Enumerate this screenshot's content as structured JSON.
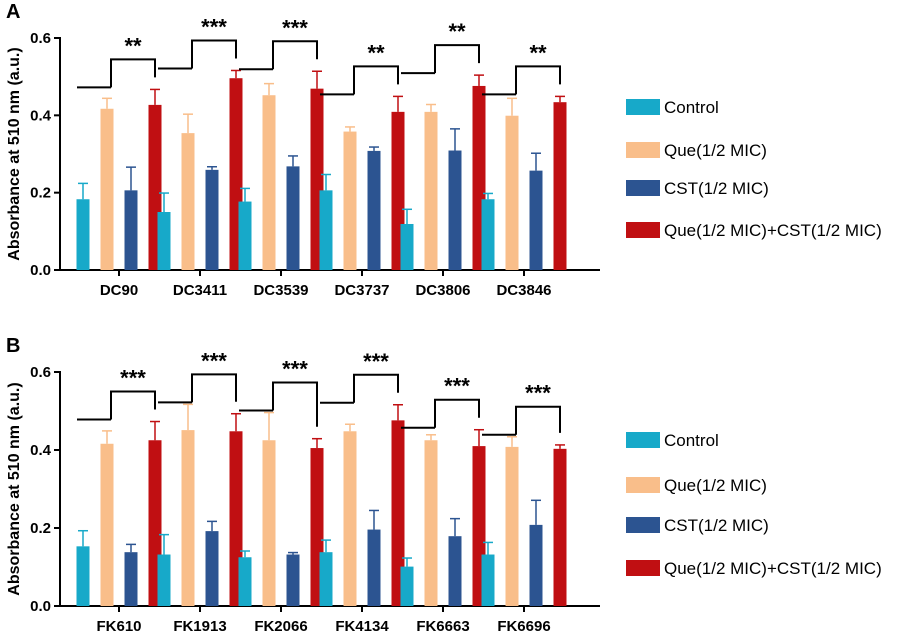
{
  "colors": {
    "Control": "#17a9c9",
    "Que(1/2 MIC)": "#f9be8a",
    "CST(1/2 MIC)": "#2c5491",
    "Que(1/2 MIC)+CST(1/2 MIC)": "#c00f12"
  },
  "chart_data": [
    {
      "type": "bar",
      "panel": "A",
      "categories": [
        "DC90",
        "DC3411",
        "DC3539",
        "DC3737",
        "DC3806",
        "DC3846"
      ],
      "series": [
        {
          "name": "Control",
          "values": [
            0.183,
            0.15,
            0.177,
            0.206,
            0.119,
            0.183
          ],
          "errors": [
            0.041,
            0.049,
            0.034,
            0.041,
            0.038,
            0.015
          ]
        },
        {
          "name": "Que(1/2 MIC)",
          "values": [
            0.417,
            0.354,
            0.452,
            0.358,
            0.409,
            0.399
          ],
          "errors": [
            0.027,
            0.049,
            0.03,
            0.012,
            0.019,
            0.045
          ]
        },
        {
          "name": "CST(1/2 MIC)",
          "values": [
            0.206,
            0.259,
            0.268,
            0.308,
            0.309,
            0.257
          ],
          "errors": [
            0.06,
            0.008,
            0.027,
            0.01,
            0.056,
            0.045
          ]
        },
        {
          "name": "Que(1/2 MIC)+CST(1/2 MIC)",
          "values": [
            0.427,
            0.496,
            0.469,
            0.409,
            0.476,
            0.434
          ],
          "errors": [
            0.04,
            0.02,
            0.045,
            0.04,
            0.028,
            0.015
          ]
        }
      ],
      "significance": [
        "**",
        "***",
        "***",
        "**",
        "**",
        "**"
      ],
      "title": "",
      "xlabel": "",
      "ylabel": "Absorbance at 510 nm (a.u.)",
      "ylim": [
        0,
        0.6
      ],
      "yticks": [
        "0.0",
        "0.2",
        "0.4",
        "0.6"
      ]
    },
    {
      "type": "bar",
      "panel": "B",
      "categories": [
        "FK610",
        "FK1913",
        "FK2066",
        "FK4134",
        "FK6663",
        "FK6696"
      ],
      "series": [
        {
          "name": "Control",
          "values": [
            0.153,
            0.132,
            0.125,
            0.138,
            0.101,
            0.132
          ],
          "errors": [
            0.04,
            0.051,
            0.016,
            0.031,
            0.022,
            0.031
          ]
        },
        {
          "name": "Que(1/2 MIC)",
          "values": [
            0.416,
            0.451,
            0.425,
            0.448,
            0.425,
            0.408
          ],
          "errors": [
            0.033,
            0.066,
            0.071,
            0.018,
            0.014,
            0.026
          ]
        },
        {
          "name": "CST(1/2 MIC)",
          "values": [
            0.138,
            0.192,
            0.132,
            0.196,
            0.179,
            0.208
          ],
          "errors": [
            0.02,
            0.025,
            0.005,
            0.049,
            0.045,
            0.063
          ]
        },
        {
          "name": "Que(1/2 MIC)+CST(1/2 MIC)",
          "values": [
            0.425,
            0.448,
            0.405,
            0.476,
            0.41,
            0.403
          ],
          "errors": [
            0.048,
            0.045,
            0.024,
            0.04,
            0.042,
            0.01
          ]
        }
      ],
      "significance": [
        "***",
        "***",
        "***",
        "***",
        "***",
        "***"
      ],
      "title": "",
      "xlabel": "",
      "ylabel": "Absorbance at 510 nm (a.u.)",
      "ylim": [
        0,
        0.6
      ],
      "yticks": [
        "0.0",
        "0.2",
        "0.4",
        "0.6"
      ]
    }
  ]
}
